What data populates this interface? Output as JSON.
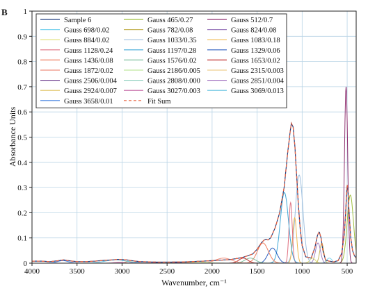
{
  "chart_data": {
    "type": "line",
    "panel_label": "B",
    "title": "",
    "xlabel": "Wavenumber, cm⁻¹",
    "ylabel": "Absorbance Units",
    "xlim": [
      4000,
      400
    ],
    "ylim": [
      0,
      1
    ],
    "x_reversed": true,
    "x_ticks": [
      4000,
      3500,
      3000,
      2500,
      2000,
      1500,
      1000,
      500
    ],
    "y_ticks": [
      0,
      0.1,
      0.2,
      0.3,
      0.4,
      0.5,
      0.6,
      0.7,
      0.8,
      0.9,
      1
    ],
    "grid": true,
    "legend_position": "top-left",
    "legend_columns": 3,
    "series": [
      {
        "name": "Sample 6",
        "kind": "data",
        "color": "#1f3f7f",
        "points": [
          [
            4000,
            0.008
          ],
          [
            3900,
            0.008
          ],
          [
            3800,
            0.006
          ],
          [
            3700,
            0.01
          ],
          [
            3650,
            0.013
          ],
          [
            3600,
            0.01
          ],
          [
            3500,
            0.006
          ],
          [
            3400,
            0.006
          ],
          [
            3300,
            0.008
          ],
          [
            3200,
            0.011
          ],
          [
            3100,
            0.013
          ],
          [
            3050,
            0.015
          ],
          [
            3000,
            0.014
          ],
          [
            2950,
            0.013
          ],
          [
            2900,
            0.01
          ],
          [
            2800,
            0.006
          ],
          [
            2600,
            0.004
          ],
          [
            2500,
            0.004
          ],
          [
            2300,
            0.005
          ],
          [
            2100,
            0.008
          ],
          [
            2000,
            0.01
          ],
          [
            1900,
            0.012
          ],
          [
            1800,
            0.014
          ],
          [
            1700,
            0.02
          ],
          [
            1650,
            0.024
          ],
          [
            1600,
            0.03
          ],
          [
            1550,
            0.036
          ],
          [
            1500,
            0.055
          ],
          [
            1450,
            0.082
          ],
          [
            1420,
            0.092
          ],
          [
            1400,
            0.095
          ],
          [
            1380,
            0.092
          ],
          [
            1350,
            0.1
          ],
          [
            1300,
            0.14
          ],
          [
            1250,
            0.2
          ],
          [
            1200,
            0.3
          ],
          [
            1160,
            0.44
          ],
          [
            1130,
            0.53
          ],
          [
            1120,
            0.555
          ],
          [
            1100,
            0.54
          ],
          [
            1080,
            0.46
          ],
          [
            1060,
            0.34
          ],
          [
            1040,
            0.22
          ],
          [
            1020,
            0.13
          ],
          [
            1000,
            0.07
          ],
          [
            960,
            0.025
          ],
          [
            900,
            0.02
          ],
          [
            860,
            0.06
          ],
          [
            830,
            0.11
          ],
          [
            810,
            0.125
          ],
          [
            790,
            0.1
          ],
          [
            770,
            0.05
          ],
          [
            740,
            0.012
          ],
          [
            700,
            0.008
          ],
          [
            650,
            0.005
          ],
          [
            600,
            0.01
          ],
          [
            560,
            0.04
          ],
          [
            530,
            0.12
          ],
          [
            510,
            0.25
          ],
          [
            500,
            0.31
          ],
          [
            490,
            0.28
          ],
          [
            475,
            0.18
          ],
          [
            460,
            0.1
          ],
          [
            440,
            0.05
          ],
          [
            420,
            0.03
          ],
          [
            400,
            0.02
          ]
        ]
      },
      {
        "name": "Gauss 465/0.27",
        "center": 465,
        "height": 0.27,
        "width": 35,
        "color": "#9fbf3f"
      },
      {
        "name": "Gauss 512/0.7",
        "center": 512,
        "height": 0.7,
        "width": 18,
        "color": "#8f2f6f"
      },
      {
        "name": "Gauss 698/0.02",
        "center": 698,
        "height": 0.02,
        "width": 30,
        "color": "#7fd4ef"
      },
      {
        "name": "Gauss 782/0.08",
        "center": 782,
        "height": 0.08,
        "width": 22,
        "color": "#c8b85f"
      },
      {
        "name": "Gauss 824/0.08",
        "center": 824,
        "height": 0.08,
        "width": 28,
        "color": "#9f7fbf"
      },
      {
        "name": "Gauss 884/0.02",
        "center": 884,
        "height": 0.02,
        "width": 30,
        "color": "#dfdf6f"
      },
      {
        "name": "Gauss 1033/0.35",
        "center": 1033,
        "height": 0.35,
        "width": 42,
        "color": "#9fbfdf"
      },
      {
        "name": "Gauss 1083/0.18",
        "center": 1083,
        "height": 0.18,
        "width": 22,
        "color": "#efb84f"
      },
      {
        "name": "Gauss 1128/0.24",
        "center": 1128,
        "height": 0.24,
        "width": 18,
        "color": "#df6f7f"
      },
      {
        "name": "Gauss 1197/0.28",
        "center": 1197,
        "height": 0.28,
        "width": 45,
        "color": "#3fa7d7"
      },
      {
        "name": "Gauss 1329/0.06",
        "center": 1329,
        "height": 0.06,
        "width": 50,
        "color": "#2f5fbf"
      },
      {
        "name": "Gauss 1436/0.08",
        "center": 1436,
        "height": 0.08,
        "width": 60,
        "color": "#ef7f5f"
      },
      {
        "name": "Gauss 1576/0.02",
        "center": 1576,
        "height": 0.02,
        "width": 60,
        "color": "#7fbf9f"
      },
      {
        "name": "Gauss 1653/0.02",
        "center": 1653,
        "height": 0.02,
        "width": 50,
        "color": "#bf2f2f"
      },
      {
        "name": "Gauss 1872/0.02",
        "center": 1872,
        "height": 0.02,
        "width": 90,
        "color": "#ef8f7f"
      },
      {
        "name": "Gauss 2186/0.005",
        "center": 2186,
        "height": 0.005,
        "width": 120,
        "color": "#bfe79f"
      },
      {
        "name": "Gauss 2315/0.003",
        "center": 2315,
        "height": 0.003,
        "width": 100,
        "color": "#efcf8f"
      },
      {
        "name": "Gauss 2506/0.004",
        "center": 2506,
        "height": 0.004,
        "width": 100,
        "color": "#6f3f8f"
      },
      {
        "name": "Gauss 2808/0.000",
        "center": 2808,
        "height": 0.0,
        "width": 60,
        "color": "#8fcfbf"
      },
      {
        "name": "Gauss 2851/0.004",
        "center": 2851,
        "height": 0.004,
        "width": 40,
        "color": "#9f6fbf"
      },
      {
        "name": "Gauss 2924/0.007",
        "center": 2924,
        "height": 0.007,
        "width": 40,
        "color": "#dfc05f"
      },
      {
        "name": "Gauss 3027/0.003",
        "center": 3027,
        "height": 0.003,
        "width": 60,
        "color": "#c05f9f"
      },
      {
        "name": "Gauss 3069/0.013",
        "center": 3069,
        "height": 0.013,
        "width": 120,
        "color": "#5fbfdf"
      },
      {
        "name": "Gauss 3658/0.01",
        "center": 3658,
        "height": 0.01,
        "width": 60,
        "color": "#3f7fdf"
      },
      {
        "name": "Fit Sum",
        "kind": "fit",
        "color": "#e8603f",
        "dashed": true
      }
    ]
  }
}
